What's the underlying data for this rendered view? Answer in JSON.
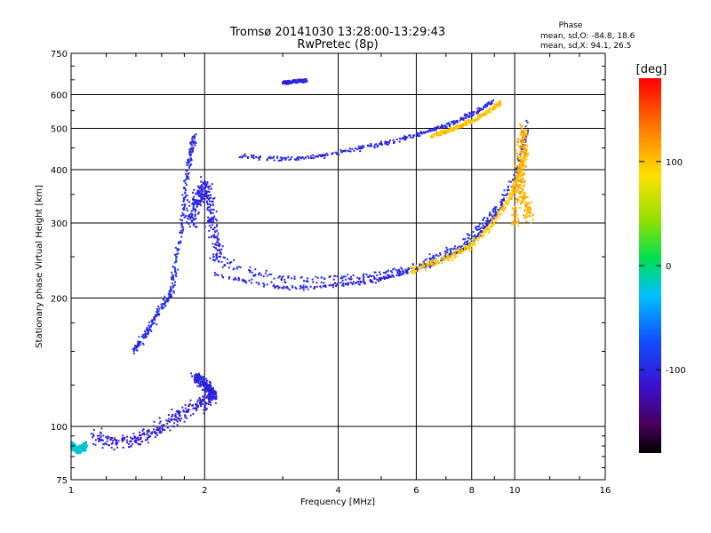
{
  "chart_data": {
    "type": "scatter",
    "title": "Tromsø 20141030 13:28:00-13:29:43",
    "subtitle": "RwPretec (8p)",
    "xlabel": "Frequency [MHz]",
    "ylabel": "Stationary phase Virtual Height [km]",
    "x_scale": "log",
    "y_scale": "log",
    "xlim": [
      1,
      16
    ],
    "ylim": [
      75,
      750
    ],
    "x_ticks": [
      1,
      2,
      4,
      6,
      8,
      10,
      16
    ],
    "y_ticks": [
      75,
      100,
      200,
      300,
      400,
      500,
      600,
      750
    ],
    "grid": true,
    "phase_stats": {
      "title": "Phase",
      "line_o": "mean, sd,O: -84.8, 18.6",
      "line_x": "mean, sd,X:  94.1, 26.5"
    },
    "colorbar": {
      "label": "[deg]",
      "range": [
        -180,
        180
      ],
      "ticks": [
        100,
        0,
        -100
      ],
      "tick_labels": [
        "100",
        "0",
        "-100"
      ]
    },
    "traces": [
      {
        "kind": "o_mode_lower",
        "phase": -95,
        "spread": 0.02,
        "points": [
          [
            1.38,
            150
          ],
          [
            1.45,
            160
          ],
          [
            1.52,
            175
          ],
          [
            1.6,
            190
          ],
          [
            1.68,
            205
          ],
          [
            1.72,
            240
          ],
          [
            1.78,
            300
          ],
          [
            1.82,
            380
          ],
          [
            1.86,
            440
          ],
          [
            1.9,
            480
          ]
        ]
      },
      {
        "kind": "o_mode_cusp",
        "phase": -100,
        "spread": 0.05,
        "points": [
          [
            1.85,
            300
          ],
          [
            1.9,
            330
          ],
          [
            1.95,
            350
          ],
          [
            2.0,
            370
          ],
          [
            2.05,
            330
          ],
          [
            2.1,
            280
          ],
          [
            2.15,
            250
          ]
        ]
      },
      {
        "kind": "o_mode_main",
        "phase": -95,
        "spread": 0.025,
        "points": [
          [
            2.05,
            250
          ],
          [
            2.3,
            240
          ],
          [
            2.6,
            230
          ],
          [
            3.0,
            222
          ],
          [
            3.5,
            220
          ],
          [
            4.0,
            222
          ],
          [
            4.5,
            225
          ],
          [
            5.0,
            228
          ],
          [
            5.5,
            232
          ],
          [
            6.0,
            238
          ],
          [
            6.5,
            245
          ],
          [
            7.0,
            255
          ],
          [
            7.5,
            265
          ],
          [
            8.0,
            280
          ],
          [
            8.5,
            300
          ],
          [
            9.0,
            320
          ],
          [
            9.5,
            345
          ],
          [
            10.0,
            380
          ],
          [
            10.3,
            420
          ],
          [
            10.5,
            470
          ],
          [
            10.7,
            520
          ]
        ]
      },
      {
        "kind": "o_mode_lower_arc",
        "phase": -100,
        "spread": 0.012,
        "points": [
          [
            2.1,
            228
          ],
          [
            2.5,
            218
          ],
          [
            3.0,
            212
          ],
          [
            3.5,
            212
          ],
          [
            4.0,
            215
          ],
          [
            4.5,
            218
          ],
          [
            5.0,
            222
          ],
          [
            5.5,
            228
          ],
          [
            6.0,
            234
          ],
          [
            6.5,
            240
          ],
          [
            7.0,
            248
          ],
          [
            7.5,
            258
          ],
          [
            8.0,
            270
          ],
          [
            8.5,
            290
          ],
          [
            9.0,
            310
          ],
          [
            9.5,
            340
          ]
        ]
      },
      {
        "kind": "x_mode_main",
        "phase": 95,
        "spread": 0.02,
        "points": [
          [
            5.8,
            232
          ],
          [
            6.3,
            238
          ],
          [
            6.8,
            245
          ],
          [
            7.3,
            252
          ],
          [
            7.8,
            262
          ],
          [
            8.3,
            275
          ],
          [
            8.8,
            295
          ],
          [
            9.3,
            318
          ],
          [
            9.8,
            350
          ],
          [
            10.1,
            380
          ],
          [
            10.4,
            410
          ],
          [
            10.7,
            440
          ]
        ]
      },
      {
        "kind": "x_mode_cusp",
        "phase": 110,
        "spread": 0.04,
        "points": [
          [
            10.0,
            300
          ],
          [
            10.1,
            340
          ],
          [
            10.2,
            380
          ],
          [
            10.3,
            420
          ],
          [
            10.4,
            460
          ],
          [
            10.5,
            500
          ],
          [
            10.3,
            360
          ],
          [
            10.6,
            330
          ],
          [
            10.8,
            310
          ]
        ]
      },
      {
        "kind": "f2_echo",
        "phase": -100,
        "spread": 0.012,
        "points": [
          [
            2.4,
            432
          ],
          [
            2.8,
            425
          ],
          [
            3.2,
            425
          ],
          [
            3.6,
            430
          ],
          [
            4.0,
            440
          ],
          [
            4.5,
            450
          ],
          [
            5.0,
            460
          ],
          [
            5.5,
            470
          ],
          [
            6.0,
            482
          ],
          [
            6.5,
            495
          ],
          [
            7.0,
            508
          ],
          [
            7.5,
            522
          ],
          [
            8.0,
            540
          ],
          [
            8.5,
            560
          ],
          [
            9.0,
            580
          ]
        ]
      },
      {
        "kind": "f2_echo_x",
        "phase": 100,
        "spread": 0.012,
        "points": [
          [
            6.5,
            480
          ],
          [
            7.0,
            492
          ],
          [
            7.5,
            505
          ],
          [
            8.0,
            520
          ],
          [
            8.5,
            540
          ],
          [
            9.0,
            560
          ],
          [
            9.3,
            575
          ]
        ]
      },
      {
        "kind": "e_layer",
        "phase": -105,
        "spread": 0.04,
        "points": [
          [
            1.1,
            95
          ],
          [
            1.25,
            92
          ],
          [
            1.4,
            93
          ],
          [
            1.55,
            98
          ],
          [
            1.7,
            104
          ],
          [
            1.85,
            110
          ],
          [
            2.0,
            115
          ],
          [
            2.1,
            118
          ]
        ]
      },
      {
        "kind": "e_layer_top",
        "phase": -100,
        "spread": 0.03,
        "points": [
          [
            1.9,
            130
          ],
          [
            2.0,
            126
          ],
          [
            2.05,
            122
          ],
          [
            2.1,
            118
          ]
        ]
      },
      {
        "kind": "e_layer_left",
        "phase": -20,
        "spread": 0.02,
        "points": [
          [
            1.0,
            90
          ],
          [
            1.04,
            88
          ],
          [
            1.08,
            90
          ]
        ]
      },
      {
        "kind": "scatter_upper",
        "phase": -100,
        "spread": 0.008,
        "points": [
          [
            3.0,
            640
          ],
          [
            3.1,
            642
          ],
          [
            3.25,
            645
          ],
          [
            3.4,
            648
          ]
        ]
      }
    ]
  }
}
